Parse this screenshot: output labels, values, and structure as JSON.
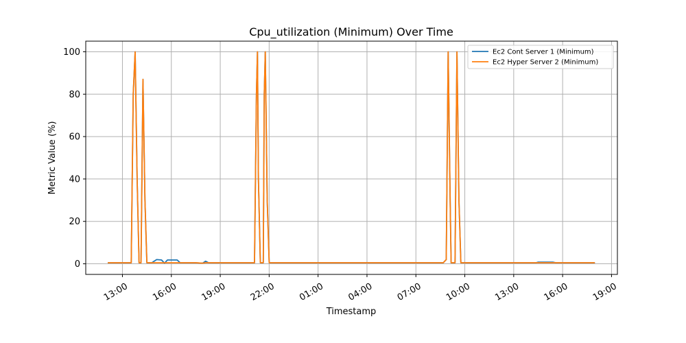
{
  "chart_data": {
    "type": "line",
    "title": "Cpu_utilization (Minimum) Over Time",
    "xlabel": "Timestamp",
    "ylabel": "Metric Value (%)",
    "x_unit": "hours",
    "xlim": [
      -3.75,
      50.6
    ],
    "ylim": [
      -5,
      105
    ],
    "x_ticks": [
      {
        "value": 0,
        "label": "13:00"
      },
      {
        "value": 5,
        "label": "16:00"
      },
      {
        "value": 10,
        "label": "19:00"
      },
      {
        "value": 15,
        "label": "22:00"
      },
      {
        "value": 20,
        "label": "01:00"
      },
      {
        "value": 25,
        "label": "04:00"
      },
      {
        "value": 30,
        "label": "07:00"
      },
      {
        "value": 35,
        "label": "10:00"
      },
      {
        "value": 40,
        "label": "13:00"
      },
      {
        "value": 45,
        "label": "16:00"
      },
      {
        "value": 50,
        "label": "19:00"
      }
    ],
    "y_ticks": [
      0,
      20,
      40,
      60,
      80,
      100
    ],
    "grid": true,
    "legend_position": "top-right",
    "series": [
      {
        "name": "Ec2 Cont Server 1 (Minimum)",
        "color": "#1f77b4",
        "points": [
          [
            -1.5,
            0.5
          ],
          [
            0.5,
            0.5
          ],
          [
            0.9,
            0.5
          ],
          [
            1.1,
            80
          ],
          [
            1.3,
            100
          ],
          [
            1.5,
            40
          ],
          [
            1.7,
            0.5
          ],
          [
            1.9,
            0.5
          ],
          [
            2.1,
            87
          ],
          [
            2.3,
            30
          ],
          [
            2.5,
            0.5
          ],
          [
            3.0,
            0.5
          ],
          [
            3.5,
            2
          ],
          [
            4.0,
            1.8
          ],
          [
            4.3,
            0.3
          ],
          [
            4.6,
            1.8
          ],
          [
            5.0,
            1.8
          ],
          [
            5.3,
            1.8
          ],
          [
            5.6,
            1.8
          ],
          [
            5.9,
            0.5
          ],
          [
            6.5,
            0.5
          ],
          [
            7.5,
            0.5
          ],
          [
            8.2,
            0.3
          ],
          [
            8.5,
            1.2
          ],
          [
            8.8,
            0.5
          ],
          [
            10.5,
            0.5
          ],
          [
            12.5,
            0.5
          ],
          [
            13.5,
            0.5
          ],
          [
            13.7,
            80
          ],
          [
            13.8,
            100
          ],
          [
            13.9,
            40
          ],
          [
            14.1,
            0.5
          ],
          [
            14.4,
            0.5
          ],
          [
            14.5,
            80
          ],
          [
            14.6,
            100
          ],
          [
            14.8,
            30
          ],
          [
            15.0,
            0.5
          ],
          [
            20.0,
            0.5
          ],
          [
            30.0,
            0.5
          ],
          [
            32.8,
            0.5
          ],
          [
            33.1,
            2
          ],
          [
            33.3,
            100
          ],
          [
            33.5,
            30
          ],
          [
            33.6,
            0.5
          ],
          [
            34.0,
            0.5
          ],
          [
            34.2,
            100
          ],
          [
            34.4,
            30
          ],
          [
            34.6,
            0.5
          ],
          [
            40.0,
            0.5
          ],
          [
            42.3,
            0.5
          ],
          [
            42.5,
            0.8
          ],
          [
            44.0,
            0.8
          ],
          [
            44.3,
            0.5
          ],
          [
            48.3,
            0.5
          ]
        ]
      },
      {
        "name": "Ec2 Hyper Server 2 (Minimum)",
        "color": "#ff7f0e",
        "points": [
          [
            -1.5,
            0.5
          ],
          [
            0.5,
            0.5
          ],
          [
            0.9,
            0.5
          ],
          [
            1.1,
            80
          ],
          [
            1.3,
            100
          ],
          [
            1.5,
            40
          ],
          [
            1.7,
            0.5
          ],
          [
            1.9,
            0.5
          ],
          [
            2.1,
            87
          ],
          [
            2.3,
            30
          ],
          [
            2.5,
            0.5
          ],
          [
            3.5,
            0.5
          ],
          [
            4.0,
            0.5
          ],
          [
            4.5,
            0.5
          ],
          [
            5.0,
            0.5
          ],
          [
            6.0,
            0.5
          ],
          [
            7.5,
            0.5
          ],
          [
            8.2,
            0.3
          ],
          [
            8.5,
            0.5
          ],
          [
            10.5,
            0.5
          ],
          [
            12.5,
            0.5
          ],
          [
            13.5,
            0.5
          ],
          [
            13.7,
            80
          ],
          [
            13.8,
            100
          ],
          [
            13.9,
            40
          ],
          [
            14.1,
            0.5
          ],
          [
            14.4,
            0.5
          ],
          [
            14.5,
            80
          ],
          [
            14.6,
            100
          ],
          [
            14.8,
            30
          ],
          [
            15.0,
            0.5
          ],
          [
            20.0,
            0.5
          ],
          [
            30.0,
            0.5
          ],
          [
            32.8,
            0.5
          ],
          [
            33.1,
            2
          ],
          [
            33.3,
            100
          ],
          [
            33.5,
            30
          ],
          [
            33.6,
            0.5
          ],
          [
            34.0,
            0.5
          ],
          [
            34.2,
            100
          ],
          [
            34.4,
            30
          ],
          [
            34.6,
            0.5
          ],
          [
            40.0,
            0.5
          ],
          [
            42.3,
            0.5
          ],
          [
            44.0,
            0.5
          ],
          [
            48.3,
            0.5
          ]
        ]
      }
    ]
  }
}
